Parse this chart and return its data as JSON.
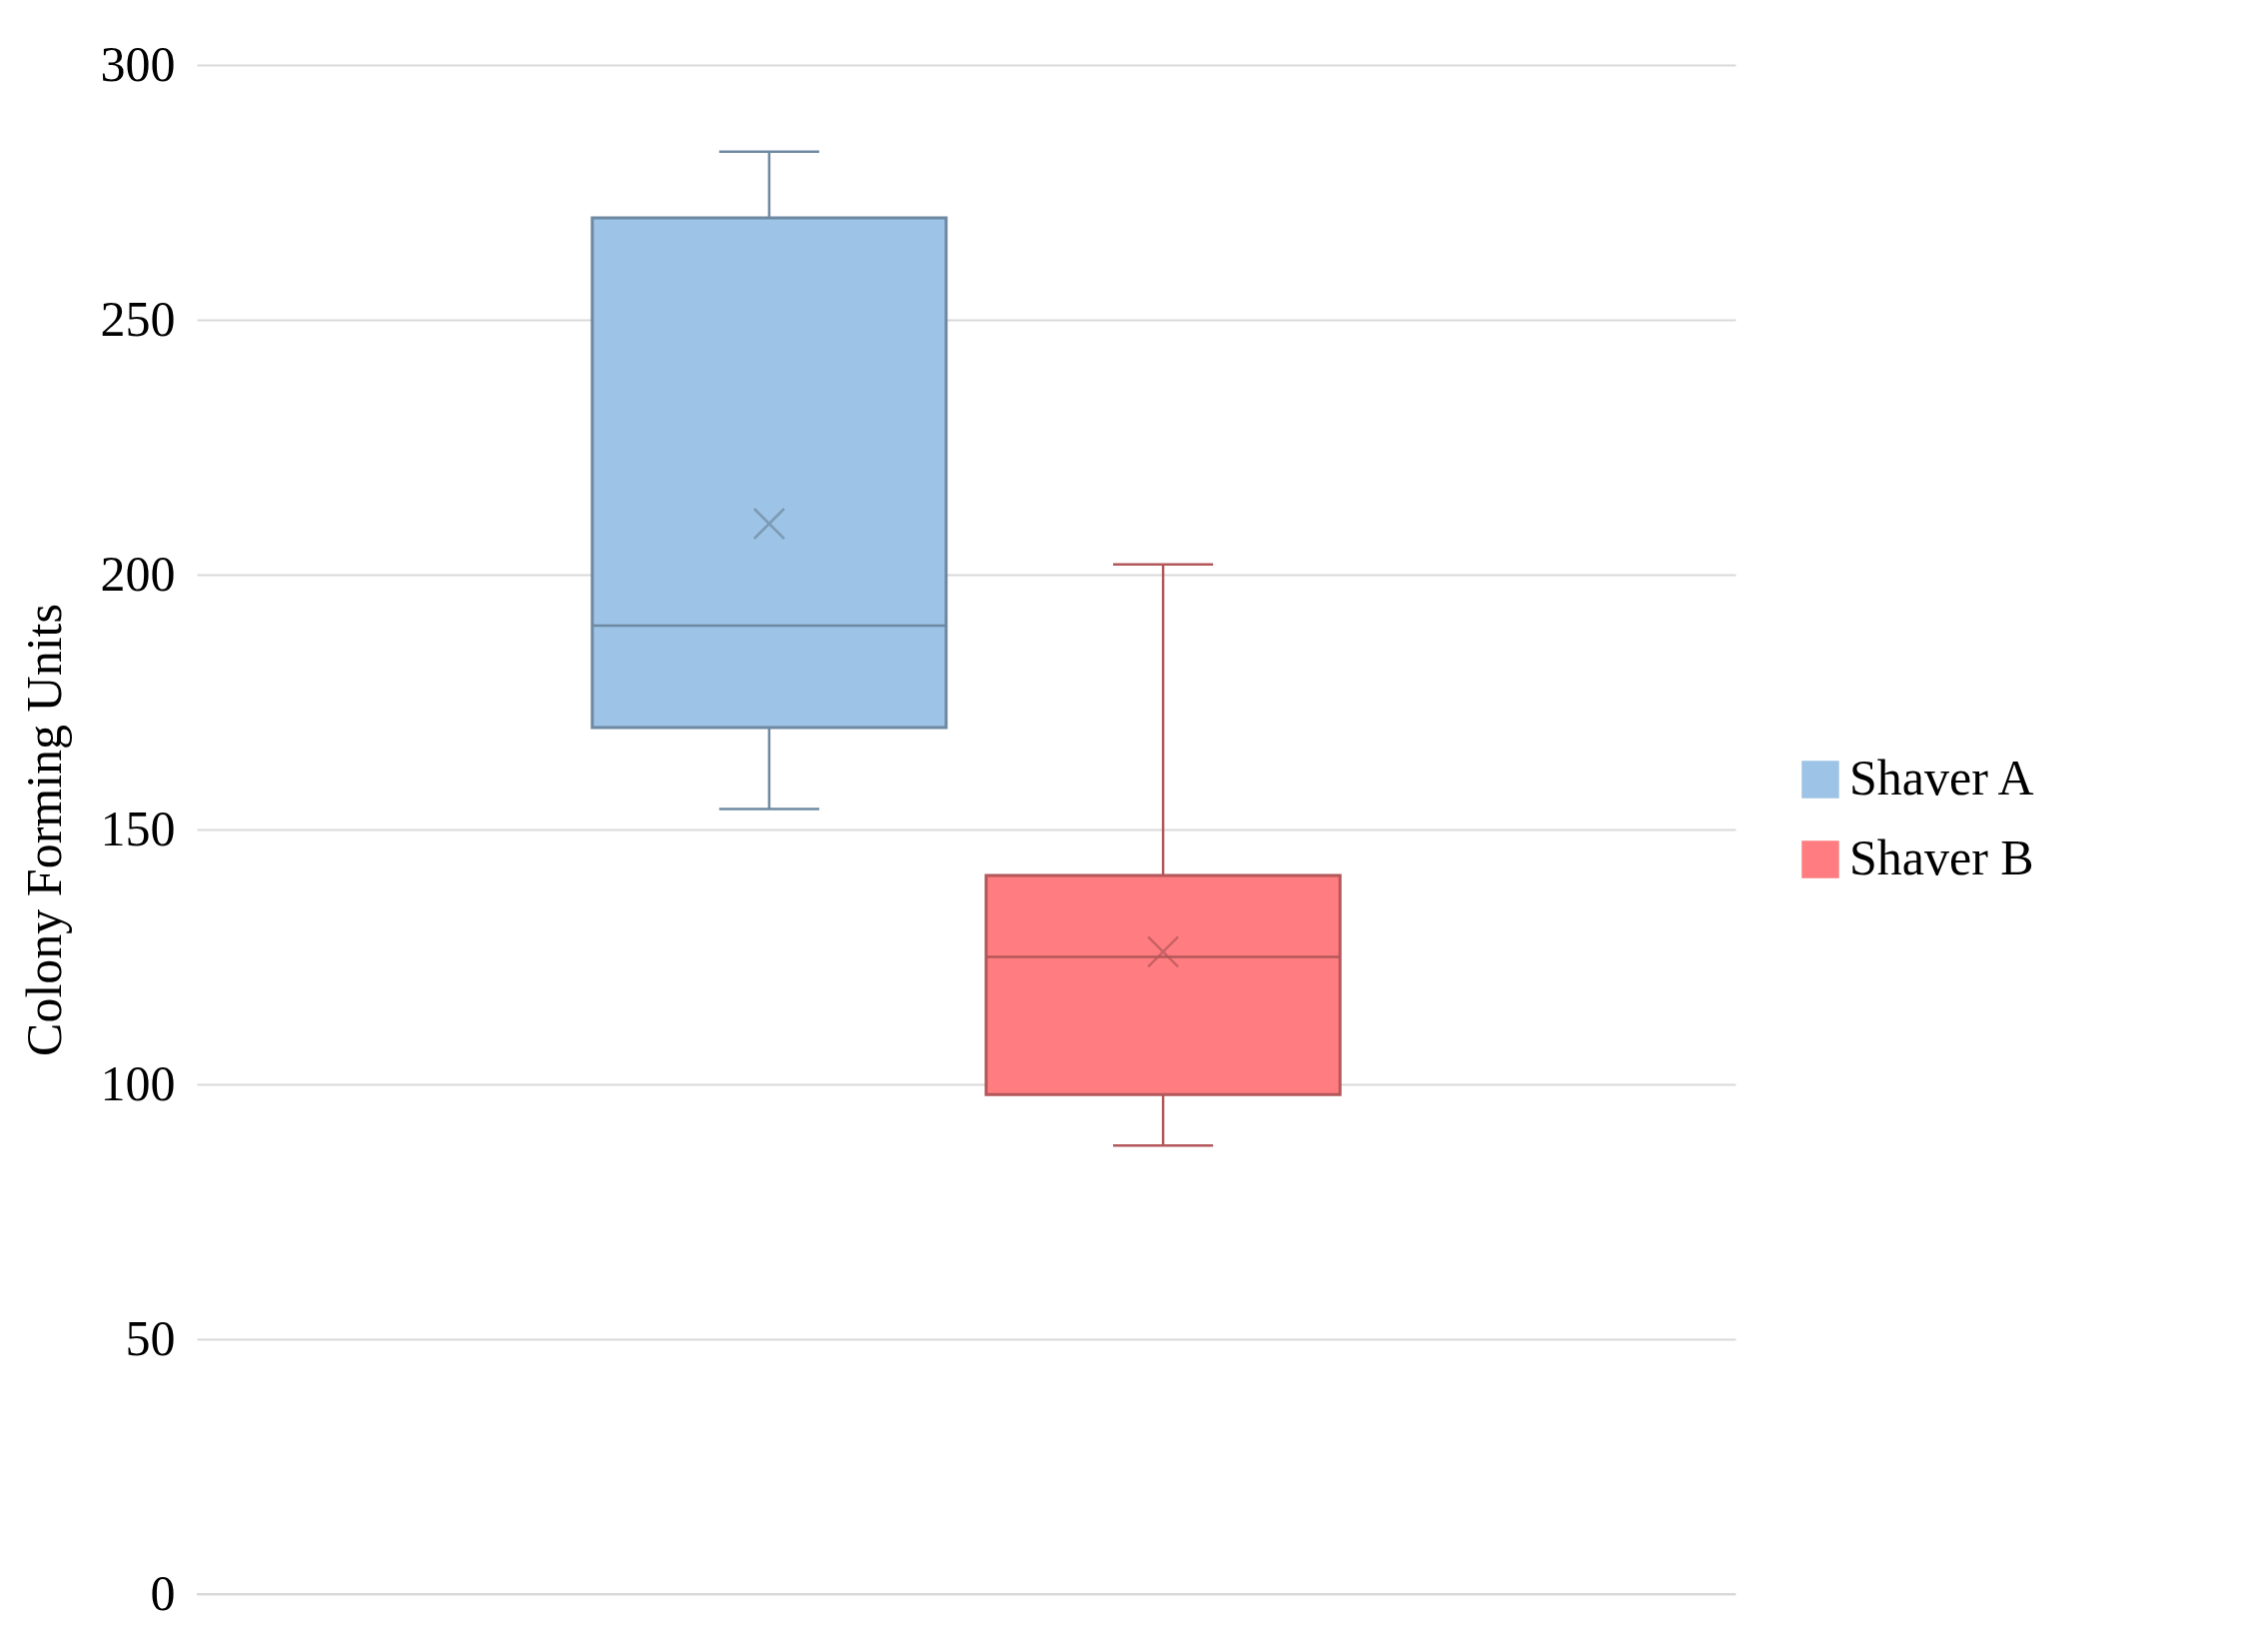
{
  "chart_data": {
    "type": "box",
    "ylabel": "Colony Forming Units",
    "categories": [
      null
    ],
    "series": [
      {
        "name": "Shaver A",
        "color": "#9dc3e6",
        "boxes": [
          {
            "low": 154,
            "q1": 170,
            "median": 190,
            "q3": 270,
            "high": 283,
            "mean": 210
          }
        ]
      },
      {
        "name": "Shaver B",
        "color": "#ff7c80",
        "boxes": [
          {
            "low": 88,
            "q1": 98,
            "median": 125,
            "q3": 141,
            "high": 202,
            "mean": 126
          }
        ]
      }
    ],
    "ylim": [
      0,
      300
    ],
    "yticks": [
      0,
      50,
      100,
      150,
      200,
      250,
      300
    ],
    "grid": "y",
    "legend": "right"
  }
}
